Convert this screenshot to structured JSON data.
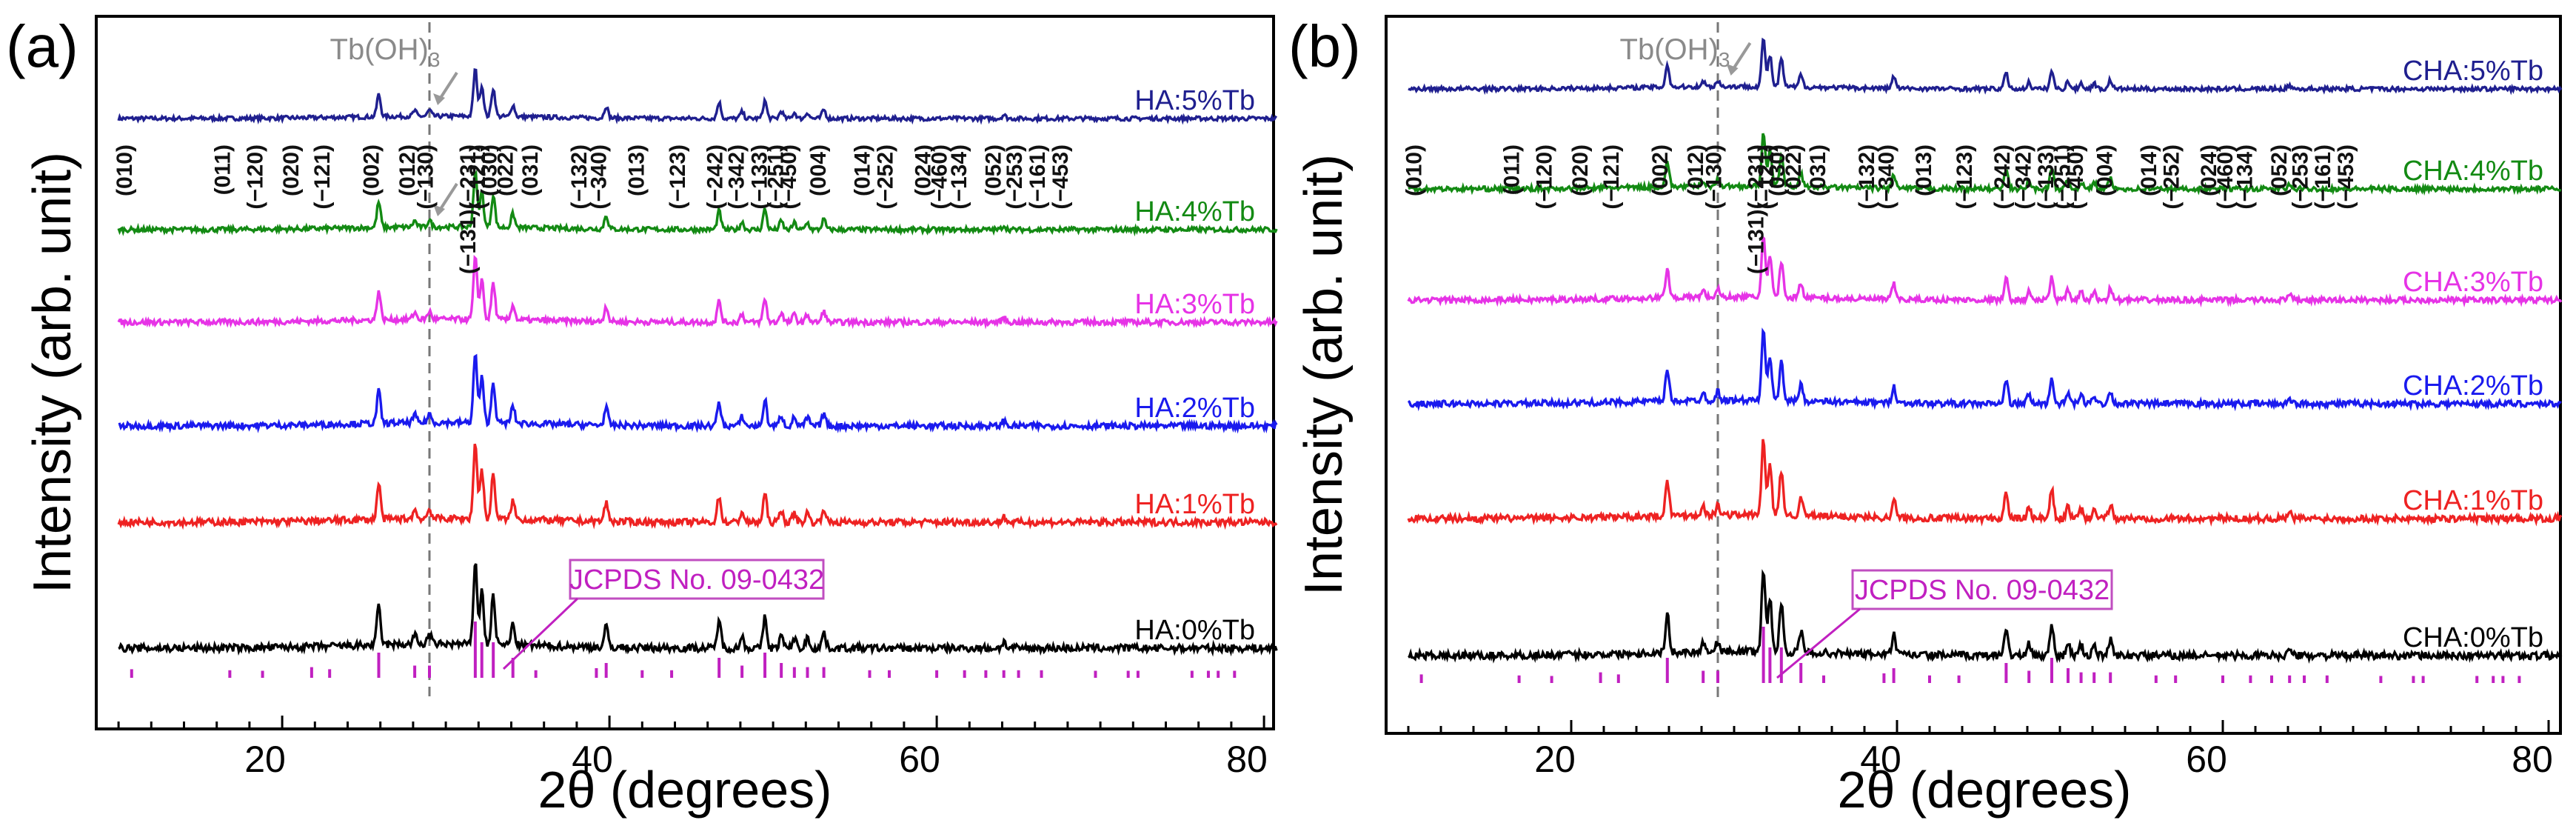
{
  "chart_data": [
    {
      "type": "line",
      "panel_label": "(a)",
      "xlabel": "2θ (degrees)",
      "ylabel": "Intensity (arb. unit)",
      "xlim": [
        9,
        81
      ],
      "xticks": [
        "20",
        "40",
        "60",
        "80"
      ],
      "phase_marker": {
        "base": "Tb(OH)",
        "sub": "3",
        "x": 29.5
      },
      "reference": {
        "label": "JCPDS No. 09-0432",
        "x": 34.2
      },
      "series": [
        {
          "name": "HA:5%Tb",
          "color": "#1f1f8f",
          "tb_arrow": true
        },
        {
          "name": "HA:4%Tb",
          "color": "#138a13",
          "tb_arrow": true
        },
        {
          "name": "HA:3%Tb",
          "color": "#e633e6",
          "tb_arrow": false
        },
        {
          "name": "HA:2%Tb",
          "color": "#1a1aee",
          "tb_arrow": false
        },
        {
          "name": "HA:1%Tb",
          "color": "#ee2222",
          "tb_arrow": false
        },
        {
          "name": "HA:0%Tb",
          "color": "#000000",
          "tb_arrow": false
        }
      ],
      "hkl_labels": [
        {
          "x": 10.8,
          "label": "(010)"
        },
        {
          "x": 16.8,
          "label": "(011)"
        },
        {
          "x": 18.8,
          "label": "(−120)"
        },
        {
          "x": 21.0,
          "label": "(020)"
        },
        {
          "x": 22.9,
          "label": "(−121)"
        },
        {
          "x": 25.9,
          "label": "(002)"
        },
        {
          "x": 28.1,
          "label": "(012)"
        },
        {
          "x": 29.2,
          "label": "(−130)"
        },
        {
          "x": 31.8,
          "label": "(−131)(−231)"
        },
        {
          "x": 32.4,
          "label": "(−121)"
        },
        {
          "x": 33.1,
          "label": "(030)"
        },
        {
          "x": 34.1,
          "label": "(022)"
        },
        {
          "x": 35.6,
          "label": "(031)"
        },
        {
          "x": 38.6,
          "label": "(−132)"
        },
        {
          "x": 39.8,
          "label": "(−340)"
        },
        {
          "x": 42.1,
          "label": "(013)"
        },
        {
          "x": 44.6,
          "label": "(−123)"
        },
        {
          "x": 46.9,
          "label": "(−242)"
        },
        {
          "x": 48.2,
          "label": "(−342)"
        },
        {
          "x": 49.6,
          "label": "(−133)"
        },
        {
          "x": 50.6,
          "label": "(−251)"
        },
        {
          "x": 51.4,
          "label": "(−450)"
        },
        {
          "x": 53.2,
          "label": "(004)"
        },
        {
          "x": 55.9,
          "label": "(014)"
        },
        {
          "x": 57.3,
          "label": "(−252)"
        },
        {
          "x": 59.6,
          "label": "(024)"
        },
        {
          "x": 60.6,
          "label": "(−460)"
        },
        {
          "x": 61.8,
          "label": "(−134)"
        },
        {
          "x": 63.9,
          "label": "(052)"
        },
        {
          "x": 65.2,
          "label": "(−253)"
        },
        {
          "x": 66.6,
          "label": "(−161)"
        },
        {
          "x": 68.0,
          "label": "(−453)"
        }
      ]
    },
    {
      "type": "line",
      "panel_label": "(b)",
      "xlabel": "2θ (degrees)",
      "ylabel": "Intensity (arb. unit)",
      "xlim": [
        9,
        81
      ],
      "xticks": [
        "20",
        "40",
        "60",
        "80"
      ],
      "phase_marker": {
        "base": "Tb(OH)",
        "sub": "3",
        "x": 29.8
      },
      "reference": {
        "label": "JCPDS No. 09-0432",
        "x": 34.0
      },
      "series": [
        {
          "name": "CHA:5%Tb",
          "color": "#1f1f8f",
          "tb_arrow": true
        },
        {
          "name": "CHA:4%Tb",
          "color": "#138a13",
          "tb_arrow": false
        },
        {
          "name": "CHA:3%Tb",
          "color": "#e633e6",
          "tb_arrow": false
        },
        {
          "name": "CHA:2%Tb",
          "color": "#1a1aee",
          "tb_arrow": false
        },
        {
          "name": "CHA:1%Tb",
          "color": "#ee2222",
          "tb_arrow": false
        },
        {
          "name": "CHA:0%Tb",
          "color": "#000000",
          "tb_arrow": false
        }
      ],
      "hkl_labels": [
        {
          "x": 10.8,
          "label": "(010)"
        },
        {
          "x": 16.8,
          "label": "(011)"
        },
        {
          "x": 18.8,
          "label": "(−120)"
        },
        {
          "x": 21.0,
          "label": "(020)"
        },
        {
          "x": 22.9,
          "label": "(−121)"
        },
        {
          "x": 25.9,
          "label": "(002)"
        },
        {
          "x": 28.1,
          "label": "(012)"
        },
        {
          "x": 29.2,
          "label": "(−130)"
        },
        {
          "x": 31.8,
          "label": "(−131)(−231)"
        },
        {
          "x": 32.4,
          "label": "(−121)"
        },
        {
          "x": 33.1,
          "label": "(030)"
        },
        {
          "x": 34.1,
          "label": "(022)"
        },
        {
          "x": 35.6,
          "label": "(031)"
        },
        {
          "x": 38.6,
          "label": "(−132)"
        },
        {
          "x": 39.8,
          "label": "(−340)"
        },
        {
          "x": 42.1,
          "label": "(013)"
        },
        {
          "x": 44.6,
          "label": "(−123)"
        },
        {
          "x": 46.9,
          "label": "(−242)"
        },
        {
          "x": 48.2,
          "label": "(−342)"
        },
        {
          "x": 49.6,
          "label": "(−133)"
        },
        {
          "x": 50.6,
          "label": "(−251)"
        },
        {
          "x": 51.4,
          "label": "(−450)"
        },
        {
          "x": 53.2,
          "label": "(004)"
        },
        {
          "x": 55.9,
          "label": "(014)"
        },
        {
          "x": 57.3,
          "label": "(−252)"
        },
        {
          "x": 59.6,
          "label": "(024)"
        },
        {
          "x": 60.6,
          "label": "(−460)"
        },
        {
          "x": 61.8,
          "label": "(−134)"
        },
        {
          "x": 63.9,
          "label": "(052)"
        },
        {
          "x": 65.2,
          "label": "(−253)"
        },
        {
          "x": 66.6,
          "label": "(−161)"
        },
        {
          "x": 68.0,
          "label": "(−453)"
        }
      ]
    }
  ],
  "reference_peaks": [
    {
      "x": 10.8,
      "h": 0.08
    },
    {
      "x": 16.8,
      "h": 0.06
    },
    {
      "x": 18.8,
      "h": 0.05
    },
    {
      "x": 21.8,
      "h": 0.12
    },
    {
      "x": 22.9,
      "h": 0.08
    },
    {
      "x": 25.9,
      "h": 0.4
    },
    {
      "x": 28.1,
      "h": 0.15
    },
    {
      "x": 29.0,
      "h": 0.15
    },
    {
      "x": 31.8,
      "h": 1.0
    },
    {
      "x": 32.2,
      "h": 0.6
    },
    {
      "x": 32.9,
      "h": 0.6
    },
    {
      "x": 34.1,
      "h": 0.3
    },
    {
      "x": 35.5,
      "h": 0.06
    },
    {
      "x": 39.2,
      "h": 0.1
    },
    {
      "x": 39.8,
      "h": 0.2
    },
    {
      "x": 42.0,
      "h": 0.06
    },
    {
      "x": 43.8,
      "h": 0.06
    },
    {
      "x": 46.7,
      "h": 0.3
    },
    {
      "x": 48.1,
      "h": 0.15
    },
    {
      "x": 49.5,
      "h": 0.4
    },
    {
      "x": 50.5,
      "h": 0.2
    },
    {
      "x": 51.3,
      "h": 0.12
    },
    {
      "x": 52.1,
      "h": 0.12
    },
    {
      "x": 53.1,
      "h": 0.12
    },
    {
      "x": 55.9,
      "h": 0.06
    },
    {
      "x": 57.1,
      "h": 0.06
    },
    {
      "x": 60.0,
      "h": 0.06
    },
    {
      "x": 61.7,
      "h": 0.06
    },
    {
      "x": 63.0,
      "h": 0.06
    },
    {
      "x": 64.1,
      "h": 0.06
    },
    {
      "x": 65.0,
      "h": 0.06
    },
    {
      "x": 66.4,
      "h": 0.06
    },
    {
      "x": 69.7,
      "h": 0.05
    },
    {
      "x": 71.7,
      "h": 0.05
    },
    {
      "x": 72.3,
      "h": 0.05
    },
    {
      "x": 75.6,
      "h": 0.05
    },
    {
      "x": 76.6,
      "h": 0.05
    },
    {
      "x": 77.2,
      "h": 0.05
    },
    {
      "x": 78.2,
      "h": 0.05
    }
  ],
  "sample_peaks": [
    {
      "x": 25.9,
      "h": 0.75
    },
    {
      "x": 28.1,
      "h": 0.18
    },
    {
      "x": 29.0,
      "h": 0.2
    },
    {
      "x": 31.8,
      "h": 1.6
    },
    {
      "x": 32.2,
      "h": 1.05
    },
    {
      "x": 32.9,
      "h": 0.95
    },
    {
      "x": 34.1,
      "h": 0.4
    },
    {
      "x": 39.8,
      "h": 0.4
    },
    {
      "x": 46.7,
      "h": 0.55
    },
    {
      "x": 48.1,
      "h": 0.22
    },
    {
      "x": 49.5,
      "h": 0.6
    },
    {
      "x": 50.5,
      "h": 0.25
    },
    {
      "x": 51.3,
      "h": 0.2
    },
    {
      "x": 52.1,
      "h": 0.2
    },
    {
      "x": 53.1,
      "h": 0.3
    },
    {
      "x": 64.1,
      "h": 0.12
    }
  ]
}
